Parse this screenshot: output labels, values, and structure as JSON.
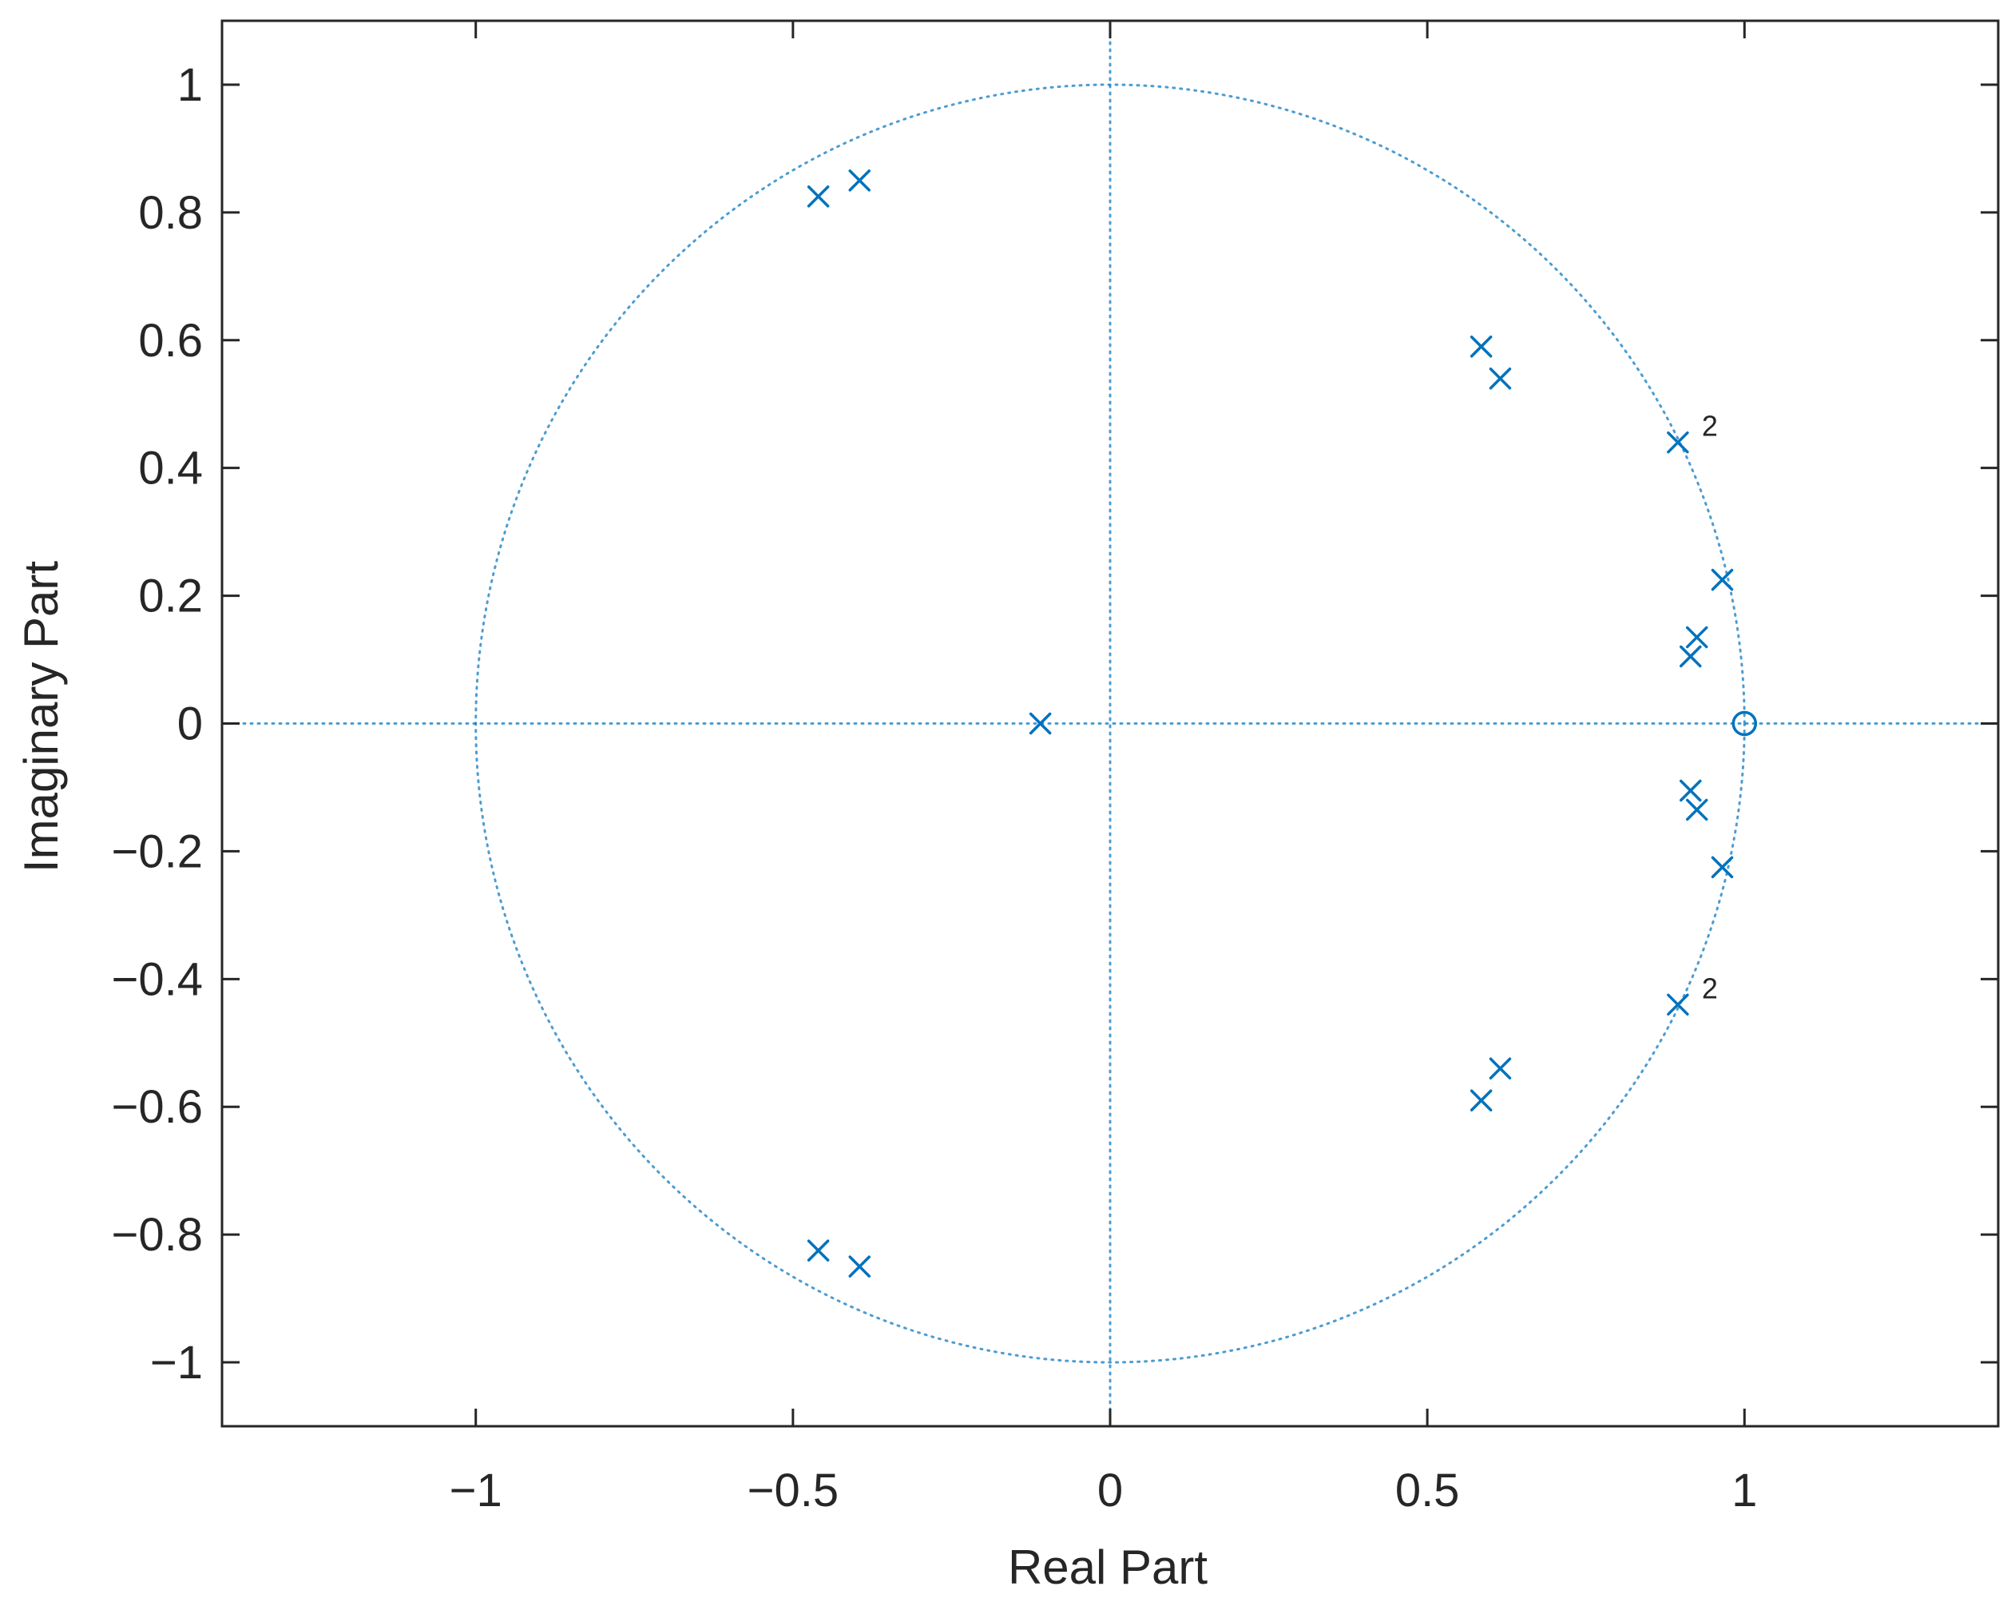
{
  "chart_data": {
    "type": "scatter",
    "title": "",
    "xlabel": "Real Part",
    "ylabel": "Imaginary Part",
    "xlim": [
      -1.4,
      1.4
    ],
    "ylim": [
      -1.1,
      1.1
    ],
    "xticks": [
      -1,
      -0.5,
      0,
      0.5,
      1
    ],
    "xtick_labels": [
      "−1",
      "−0.5",
      "0",
      "0.5",
      "1"
    ],
    "yticks": [
      1,
      0.8,
      0.6,
      0.4,
      0.2,
      0,
      -0.2,
      -0.4,
      -0.6,
      -0.8,
      -1
    ],
    "ytick_labels": [
      "1",
      "0.8",
      "0.6",
      "0.4",
      "0.2",
      "0",
      "−0.2",
      "−0.4",
      "−0.6",
      "−0.8",
      "−1"
    ],
    "grid": false,
    "unit_circle": true,
    "color": "#0072BD",
    "poles": [
      {
        "x": -0.46,
        "y": 0.825
      },
      {
        "x": -0.395,
        "y": 0.85
      },
      {
        "x": -0.46,
        "y": -0.825
      },
      {
        "x": -0.395,
        "y": -0.85
      },
      {
        "x": -0.11,
        "y": 0
      },
      {
        "x": 0.585,
        "y": 0.59
      },
      {
        "x": 0.615,
        "y": 0.54
      },
      {
        "x": 0.585,
        "y": -0.59
      },
      {
        "x": 0.615,
        "y": -0.54
      },
      {
        "x": 0.895,
        "y": 0.44
      },
      {
        "x": 0.895,
        "y": -0.44
      },
      {
        "x": 0.965,
        "y": 0.225
      },
      {
        "x": 0.965,
        "y": -0.225
      },
      {
        "x": 0.925,
        "y": 0.135
      },
      {
        "x": 0.925,
        "y": -0.135
      },
      {
        "x": 0.915,
        "y": 0.105
      },
      {
        "x": 0.915,
        "y": -0.105
      }
    ],
    "zeros": [
      {
        "x": 1.0,
        "y": 0
      }
    ],
    "annotations": [
      {
        "text": "2",
        "x": 0.895,
        "y": 0.44
      },
      {
        "text": "2",
        "x": 0.895,
        "y": -0.44
      }
    ]
  }
}
